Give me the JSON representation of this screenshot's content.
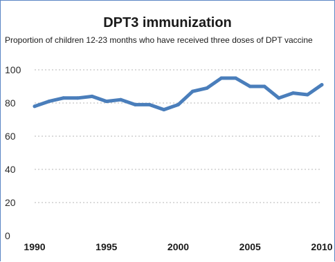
{
  "chart_data": {
    "type": "line",
    "title": "DPT3 immunization",
    "subtitle": "Proportion of children 12-23 months who have received three doses of DPT vaccine",
    "xlabel": "",
    "ylabel": "",
    "xlim": [
      1990,
      2010
    ],
    "ylim": [
      0,
      100
    ],
    "x_ticks": [
      1990,
      1995,
      2000,
      2005,
      2010
    ],
    "y_ticks": [
      0,
      20,
      40,
      60,
      80,
      100
    ],
    "grid": "horizontal dotted",
    "series": [
      {
        "color": "#4a7ebb",
        "x": [
          1990,
          1991,
          1992,
          1993,
          1994,
          1995,
          1996,
          1997,
          1998,
          1999,
          2000,
          2001,
          2002,
          2003,
          2004,
          2005,
          2006,
          2007,
          2008,
          2009,
          2010
        ],
        "values": [
          78,
          81,
          83,
          83,
          84,
          81,
          82,
          79,
          79,
          76,
          79,
          87,
          89,
          95,
          95,
          90,
          90,
          83,
          86,
          85,
          91
        ]
      }
    ]
  }
}
